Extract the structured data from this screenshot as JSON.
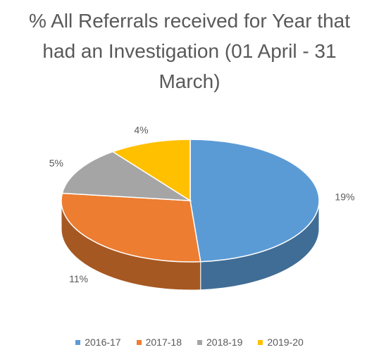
{
  "chart_data": {
    "type": "pie3d",
    "title": "% All Referrals received for Year that had an Investigation (01 April - 31 March)",
    "categories": [
      "2016-17",
      "2017-18",
      "2018-19",
      "2019-20"
    ],
    "values": [
      19,
      11,
      5,
      4
    ],
    "value_labels": [
      "19%",
      "11%",
      "5%",
      "4%"
    ],
    "colors": [
      "#5b9bd5",
      "#ed7d31",
      "#a5a5a5",
      "#ffc000"
    ],
    "legend": "bottom"
  }
}
